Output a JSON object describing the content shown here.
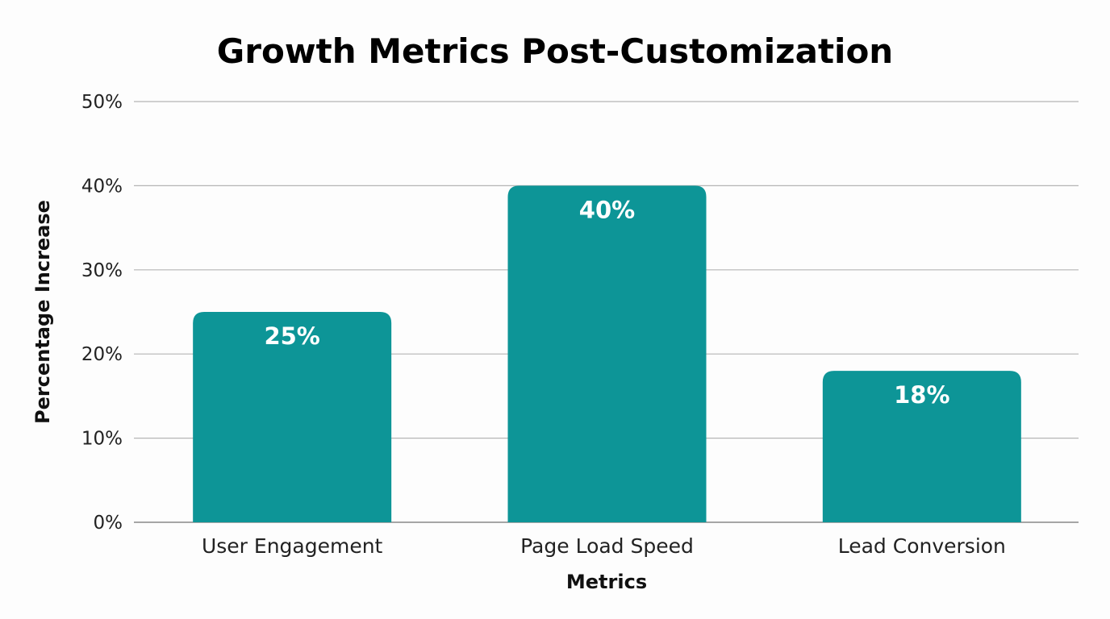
{
  "chart_data": {
    "type": "bar",
    "title": "Growth Metrics Post-Customization",
    "xlabel": "Metrics",
    "ylabel": "Percentage Increase",
    "categories": [
      "User Engagement",
      "Page Load Speed",
      "Lead Conversion"
    ],
    "values": [
      25,
      40,
      18
    ],
    "data_labels": [
      "25%",
      "40%",
      "18%"
    ],
    "ylim": [
      0,
      50
    ],
    "yticks": [
      0,
      10,
      20,
      30,
      40,
      50
    ],
    "ytick_labels": [
      "0%",
      "10%",
      "20%",
      "30%",
      "40%",
      "50%"
    ],
    "grid": true,
    "legend": "none",
    "colors": {
      "bar": "#0d9597",
      "grid": "#b5b5b5",
      "axis": "#8a8a8a"
    }
  }
}
